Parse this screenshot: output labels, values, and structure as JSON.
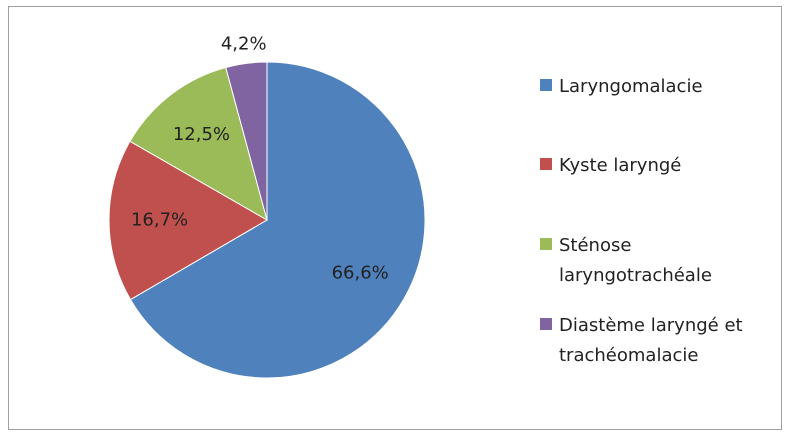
{
  "chart_data": {
    "type": "pie",
    "categories": [
      "Laryngomalacie",
      "Kyste laryngé",
      "Sténose laryngotrachéale",
      "Diastème laryngé et trachéomalacie"
    ],
    "values": [
      66.6,
      16.7,
      12.5,
      4.2
    ],
    "value_labels": [
      "66,6%",
      "16,7%",
      "12,5%",
      "4,2%"
    ],
    "colors": [
      "#4f81bd",
      "#c0504d",
      "#9bbb59",
      "#8064a2"
    ],
    "legend": "right"
  }
}
